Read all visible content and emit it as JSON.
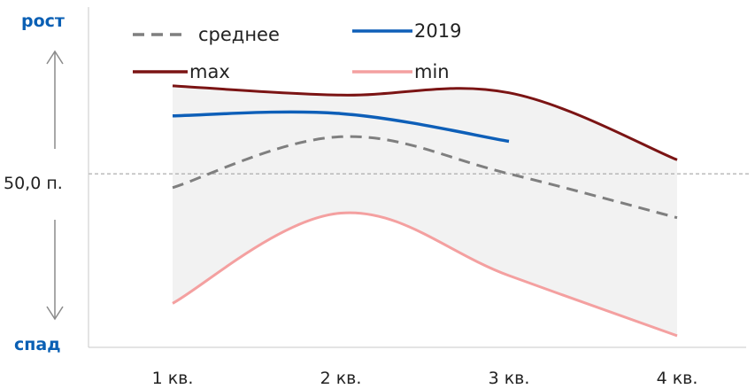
{
  "chart_data": {
    "type": "line",
    "categories": [
      "1 кв.",
      "2 кв.",
      "3 кв.",
      "4 кв."
    ],
    "ylim": [
      42.5,
      57.2
    ],
    "reference_line": {
      "value": 50.0,
      "label": "50,0 п."
    },
    "axis_direction": {
      "up_label": "рост",
      "down_label": "спад"
    },
    "band": {
      "lower_series": "min",
      "upper_series": "max",
      "color": "#f2f2f2"
    },
    "series": [
      {
        "name": "среднее",
        "values": [
          49.4,
          51.6,
          50.0,
          48.1
        ],
        "color": "#7f7f7f",
        "style": "dashed"
      },
      {
        "name": "2019",
        "values": [
          52.5,
          52.6,
          51.4,
          null
        ],
        "color": "#0e5fb8",
        "style": "solid"
      },
      {
        "name": "max",
        "values": [
          53.8,
          53.4,
          53.5,
          50.6
        ],
        "color": "#7b1414",
        "style": "solid"
      },
      {
        "name": "min",
        "values": [
          44.4,
          48.3,
          45.6,
          43.0
        ],
        "color": "#f4a0a0",
        "style": "solid"
      }
    ],
    "legend": {
      "placement": "top",
      "columns": 2
    },
    "grid": false
  }
}
